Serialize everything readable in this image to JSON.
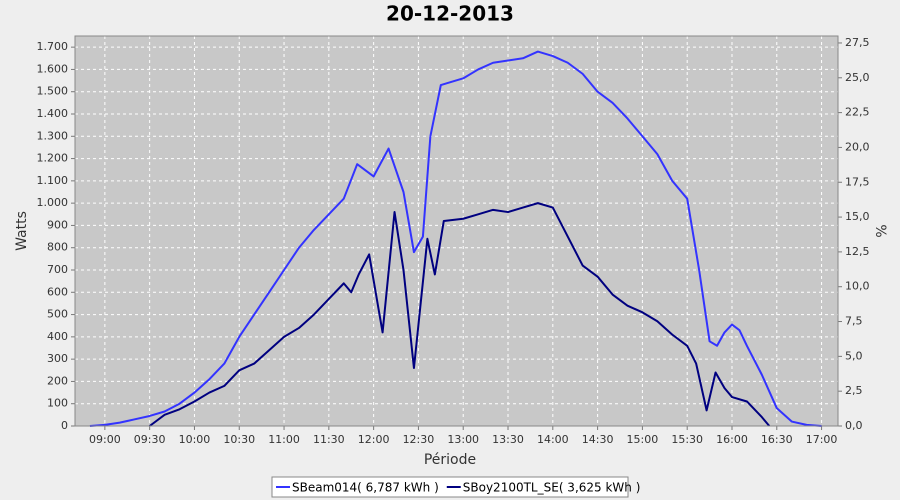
{
  "chart_data": {
    "type": "line",
    "title": "20-12-2013",
    "x_label": "Période",
    "y_label": "Watts",
    "y2_label": "%",
    "xlim": [
      "08:40",
      "17:11"
    ],
    "xticks": [
      "09:00",
      "09:30",
      "10:00",
      "10:30",
      "11:00",
      "11:30",
      "12:00",
      "12:30",
      "13:00",
      "13:30",
      "14:00",
      "14:30",
      "15:00",
      "15:30",
      "16:00",
      "16:30",
      "17:00"
    ],
    "ylim": [
      0,
      1750
    ],
    "yticks": [
      0,
      100,
      200,
      300,
      400,
      500,
      600,
      700,
      800,
      900,
      {
        "value": 1000,
        "label": "1.000"
      },
      {
        "value": 1100,
        "label": "1.100"
      },
      {
        "value": 1200,
        "label": "1.200"
      },
      {
        "value": 1300,
        "label": "1.300"
      },
      {
        "value": 1400,
        "label": "1.400"
      },
      {
        "value": 1500,
        "label": "1.500"
      },
      {
        "value": 1600,
        "label": "1.600"
      },
      {
        "value": 1700,
        "label": "1.700"
      }
    ],
    "y2lim": [
      0,
      28
    ],
    "y2ticks": [
      {
        "value": 0,
        "label": "0,0"
      },
      {
        "value": 2.5,
        "label": "2,5"
      },
      {
        "value": 5,
        "label": "5,0"
      },
      {
        "value": 7.5,
        "label": "7,5"
      },
      {
        "value": 10,
        "label": "10,0"
      },
      {
        "value": 12.5,
        "label": "12,5"
      },
      {
        "value": 15,
        "label": "15,0"
      },
      {
        "value": 17.5,
        "label": "17,5"
      },
      {
        "value": 20,
        "label": "20,0"
      },
      {
        "value": 22.5,
        "label": "22,5"
      },
      {
        "value": 25,
        "label": "25,0"
      },
      {
        "value": 27.5,
        "label": "27,5"
      }
    ],
    "grid": true,
    "series": [
      {
        "name": "SBeam014( 6,787 kWh )",
        "color": "#3333ff",
        "x": [
          "08:50",
          "09:00",
          "09:10",
          "09:20",
          "09:30",
          "09:40",
          "09:50",
          "10:00",
          "10:10",
          "10:20",
          "10:30",
          "10:40",
          "10:50",
          "11:00",
          "11:10",
          "11:20",
          "11:30",
          "11:40",
          "11:49",
          "12:00",
          "12:10",
          "12:20",
          "12:27",
          "12:33",
          "12:38",
          "12:45",
          "13:00",
          "13:10",
          "13:20",
          "13:30",
          "13:40",
          "13:50",
          "14:00",
          "14:10",
          "14:20",
          "14:30",
          "14:40",
          "14:50",
          "15:00",
          "15:10",
          "15:20",
          "15:30",
          "15:38",
          "15:45",
          "15:50",
          "15:55",
          "16:00",
          "16:05",
          "16:10",
          "16:20",
          "16:30",
          "16:40",
          "16:50",
          "17:00"
        ],
        "values": [
          0,
          5,
          15,
          30,
          45,
          65,
          100,
          150,
          210,
          280,
          400,
          500,
          600,
          700,
          800,
          880,
          950,
          1020,
          1175,
          1120,
          1245,
          1050,
          780,
          850,
          1300,
          1530,
          1560,
          1600,
          1630,
          1640,
          1650,
          1680,
          1660,
          1630,
          1580,
          1500,
          1450,
          1380,
          1300,
          1220,
          1100,
          1020,
          700,
          380,
          360,
          420,
          455,
          430,
          360,
          230,
          80,
          20,
          5,
          0
        ]
      },
      {
        "name": "SBoy2100TL_SE( 3,625 kWh )",
        "color": "#000080",
        "x": [
          "09:30",
          "09:40",
          "09:50",
          "10:00",
          "10:10",
          "10:20",
          "10:30",
          "10:40",
          "10:50",
          "11:00",
          "11:10",
          "11:20",
          "11:30",
          "11:40",
          "11:45",
          "11:50",
          "11:57",
          "12:06",
          "12:14",
          "12:20",
          "12:27",
          "12:36",
          "12:41",
          "12:47",
          "13:00",
          "13:10",
          "13:20",
          "13:30",
          "13:40",
          "13:50",
          "14:00",
          "14:10",
          "14:20",
          "14:30",
          "14:40",
          "14:50",
          "15:00",
          "15:10",
          "15:20",
          "15:30",
          "15:36",
          "15:43",
          "15:49",
          "15:55",
          "16:00",
          "16:10",
          "16:20",
          "16:25"
        ],
        "values": [
          0,
          50,
          75,
          110,
          150,
          180,
          250,
          280,
          340,
          400,
          440,
          500,
          570,
          640,
          600,
          680,
          770,
          420,
          960,
          700,
          260,
          840,
          680,
          920,
          930,
          950,
          970,
          960,
          980,
          1000,
          980,
          850,
          720,
          670,
          590,
          540,
          510,
          470,
          410,
          360,
          280,
          70,
          240,
          170,
          130,
          110,
          40,
          0
        ]
      }
    ]
  }
}
